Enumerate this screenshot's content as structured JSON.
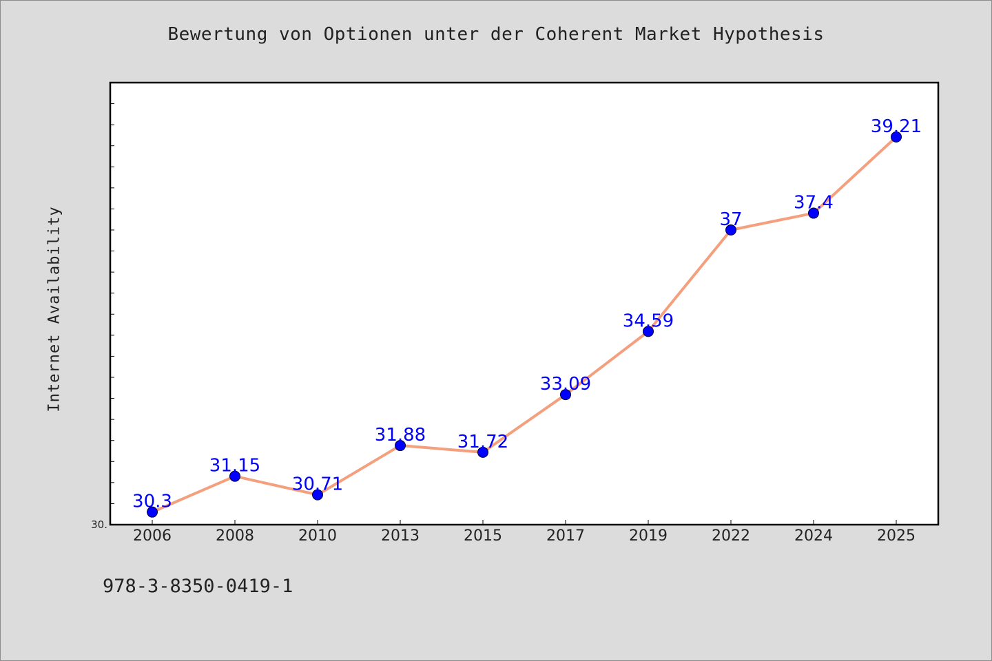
{
  "chart_data": {
    "type": "line",
    "title": "Bewertung von Optionen unter der Coherent Market Hypothesis",
    "xlabel": "",
    "ylabel": "Internet Availability",
    "categories": [
      "2006",
      "2008",
      "2010",
      "2013",
      "2015",
      "2017",
      "2019",
      "2022",
      "2024",
      "2025"
    ],
    "series": [
      {
        "values": [
          30.3,
          31.15,
          30.71,
          31.88,
          31.72,
          33.09,
          34.59,
          37,
          37.4,
          39.21
        ]
      }
    ],
    "data_labels": [
      "30.3",
      "31.15",
      "30.71",
      "31.88",
      "31.72",
      "33.09",
      "34.59",
      "37",
      "37.4",
      "39.21"
    ],
    "ylim": [
      30.0,
      40.5
    ],
    "y_tick_label": "30.",
    "grid": false,
    "legend": "none",
    "colors": {
      "line": "#f4a07e",
      "marker": "#0000ff",
      "data_label": "#0000ff",
      "plot_background": "#ffffff",
      "figure_background": "#dcdcdc"
    }
  },
  "footer": {
    "isbn": "978-3-8350-0419-1"
  }
}
